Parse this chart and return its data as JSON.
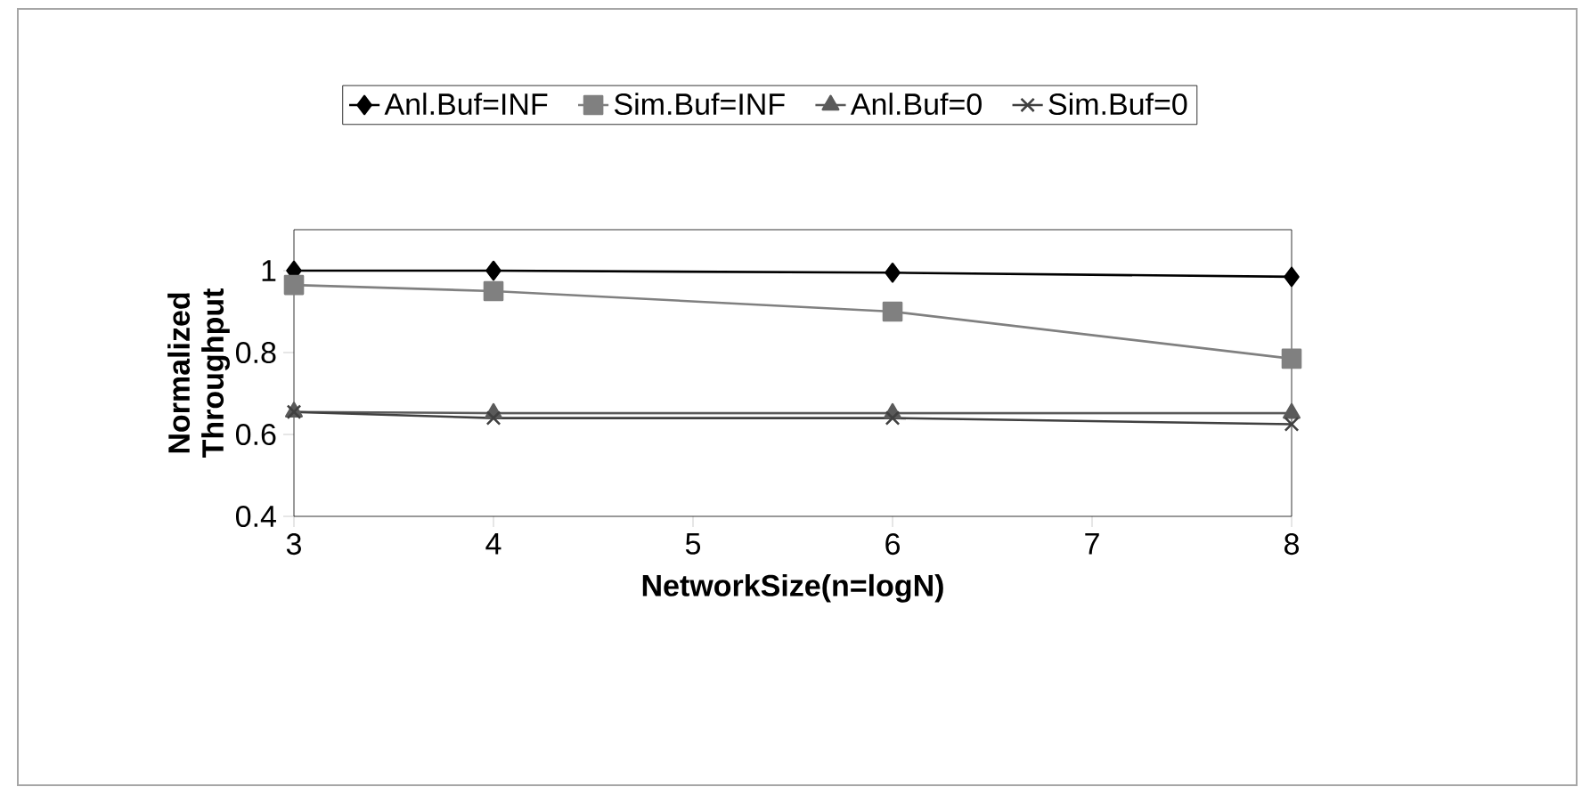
{
  "chart_data": {
    "type": "line",
    "xlabel": "NetworkSize(n=logN)",
    "ylabel": "Normalized Throughput",
    "x": [
      3,
      4,
      6,
      8
    ],
    "xlim": [
      3,
      8
    ],
    "xticks": [
      3,
      4,
      5,
      6,
      7,
      8
    ],
    "ylim": [
      0.4,
      1.1
    ],
    "yticks": [
      0.4,
      0.6,
      0.8,
      1
    ],
    "legend": "top",
    "grid": false,
    "series": [
      {
        "name": "Anl.Buf=INF",
        "color": "#000000",
        "marker": "diamond",
        "values": [
          1.0,
          1.0,
          0.995,
          0.985
        ]
      },
      {
        "name": "Sim.Buf=INF",
        "color": "#808080",
        "marker": "square",
        "values": [
          0.965,
          0.95,
          0.9,
          0.785
        ]
      },
      {
        "name": "Anl.Buf=0",
        "color": "#5a5a5a",
        "marker": "triangle",
        "values": [
          0.655,
          0.652,
          0.652,
          0.652
        ]
      },
      {
        "name": "Sim.Buf=0",
        "color": "#404040",
        "marker": "cross",
        "values": [
          0.655,
          0.64,
          0.64,
          0.625
        ]
      }
    ]
  }
}
